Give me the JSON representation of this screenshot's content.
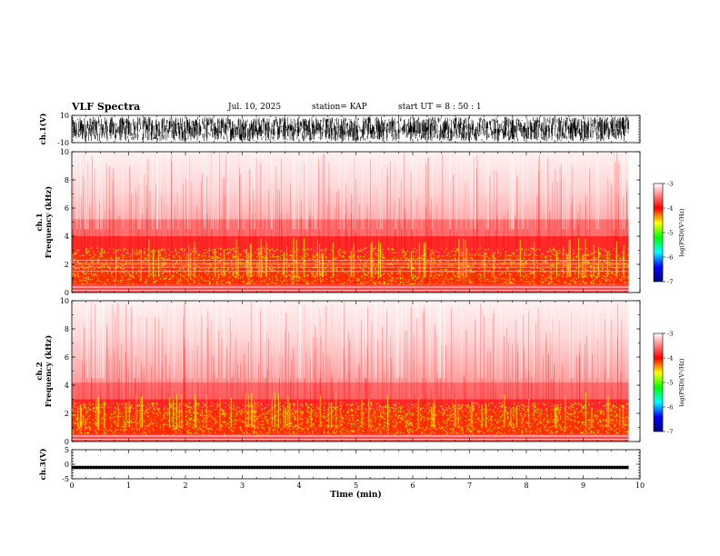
{
  "header": {
    "title": "VLF Spectra",
    "date": "Jul. 10, 2025",
    "station": "station= KAP",
    "start": "start  UT =   8  : 50 : 1"
  },
  "colors": {
    "background": "#ffffff",
    "waveform": "#000000",
    "colormap": [
      "#000080",
      "#0000ff",
      "#00ffff",
      "#00ff00",
      "#ffff00",
      "#ff0000",
      "#ffffff"
    ]
  },
  "chart_data": [
    {
      "type": "line",
      "id": "ch1-waveform",
      "ylabel": "ch.1(V)",
      "ylim": [
        -10,
        10
      ],
      "y_ticks": [
        10,
        -10
      ],
      "x_range_min": [
        0,
        10
      ],
      "description_values": "dense noise waveform filling roughly ±8 V from 0 to 9.8 min"
    },
    {
      "type": "heatmap",
      "id": "ch1-spectrogram",
      "ylabel": "ch.1\nFrequency (kHz)",
      "ylabel_line1": "ch.1",
      "ylabel_line2": "Frequency (kHz)",
      "ylim": [
        0,
        10
      ],
      "y_ticks": [
        0,
        2,
        4,
        6,
        8,
        10
      ],
      "xlim": [
        0,
        10
      ],
      "data_end_min": 9.8,
      "colorbar": {
        "label": "log(PSD)(V²/Hz)",
        "range": [
          -7,
          -3
        ],
        "ticks": [
          -3,
          -4,
          -5,
          -6,
          -7
        ]
      },
      "band_profile_khz": [
        {
          "f_max": 0.6,
          "level": "white/red striped"
        },
        {
          "f_max": 2.5,
          "level": "yellow-red (about -4)"
        },
        {
          "f_max": 4.0,
          "level": "red (about -4.3)"
        },
        {
          "f_max": 10,
          "level": "light red to white (about -3.5)"
        }
      ],
      "horizontal_lines_khz": [
        1.5,
        1.8,
        2.0,
        2.1,
        2.3
      ]
    },
    {
      "type": "heatmap",
      "id": "ch2-spectrogram",
      "ylabel_line1": "ch.2",
      "ylabel_line2": "Frequency (kHz)",
      "ylim": [
        0,
        10
      ],
      "y_ticks": [
        0,
        2,
        4,
        6,
        8,
        10
      ],
      "xlim": [
        0,
        10
      ],
      "data_end_min": 9.8,
      "colorbar": {
        "label": "log(PSD)(V²/Hz)",
        "range": [
          -7,
          -3
        ],
        "ticks": [
          -3,
          -4,
          -5,
          -6,
          -7
        ]
      },
      "band_profile_khz": [
        {
          "f_max": 0.5,
          "level": "white/red striped"
        },
        {
          "f_max": 2.2,
          "level": "yellow-red (about -4)"
        },
        {
          "f_max": 3.0,
          "level": "red (about -4.3)"
        },
        {
          "f_max": 10,
          "level": "light red to white (about -3.5)"
        }
      ]
    },
    {
      "type": "line",
      "id": "ch3-waveform",
      "ylabel": "ch.3(V)",
      "ylim": [
        -5,
        5
      ],
      "y_ticks": [
        5,
        0,
        -5
      ],
      "xlim": [
        0,
        10
      ],
      "xlabel": "Time (min)",
      "x_ticks": [
        0,
        1,
        2,
        3,
        4,
        5,
        6,
        7,
        8,
        9,
        10
      ],
      "description_values": "constant flat trace near -1 V with small thickness from 0 to 9.8 min"
    }
  ]
}
